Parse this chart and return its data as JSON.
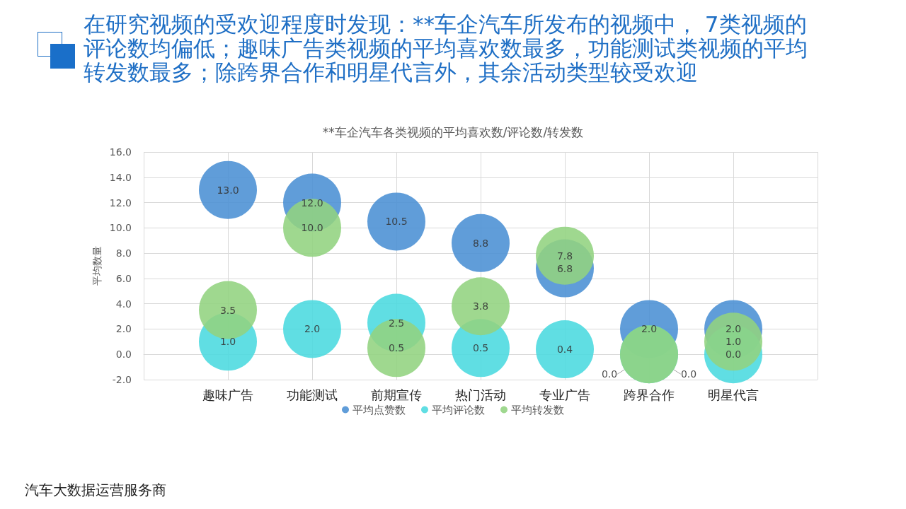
{
  "chart_data": {
    "type": "scatter",
    "title": "在研究视频的受欢迎程度时发现：**车企汽车所发布的视频中， 7类视频的评论数均偏低；趣味广告类视频的平均喜欢数最多，功能测试类视频的平均转发数最多；除跨界合作和明星代言外，其余活动类型较受欢迎",
    "subtitle": "**车企汽车各类视频的平均喜欢数/评论数/转发数",
    "ylabel": "平均数量",
    "categories": [
      null,
      "趣味广告",
      "功能测试",
      "前期宣传",
      "热门活动",
      "专业广告",
      "跨界合作",
      "明星代言",
      null
    ],
    "series": [
      {
        "name": "平均点赞数",
        "color": "#4a8fd4",
        "values": [
          null,
          13,
          12,
          10.5,
          8.8,
          6.8,
          2,
          2,
          null
        ],
        "value_labels": [
          null,
          "13.0",
          "12.0",
          "10.5",
          "8.8",
          "6.8",
          "2.0",
          "2.0",
          null
        ]
      },
      {
        "name": "平均评论数",
        "color": "#4ad9df",
        "values": [
          null,
          1,
          2,
          2.5,
          0.5,
          0.4,
          0,
          0,
          null
        ],
        "value_labels": [
          null,
          "1.0",
          "2.0",
          "2.5",
          "0.5",
          "0.4",
          "0.0",
          "0.0",
          null
        ]
      },
      {
        "name": "平均转发数",
        "color": "#92d37f",
        "values": [
          null,
          3.5,
          10,
          0.5,
          3.8,
          7.8,
          0,
          1,
          null
        ],
        "value_labels": [
          null,
          "3.5",
          "10.0",
          "0.5",
          "3.8",
          "7.8",
          "0.0",
          "1.0",
          null
        ]
      }
    ],
    "ylim": [
      -2,
      16
    ],
    "yticks": [
      {
        "value": -2,
        "label": "-2.0"
      },
      {
        "value": 0,
        "label": "0.0"
      },
      {
        "value": 2,
        "label": "2.0"
      },
      {
        "value": 4,
        "label": "4.0"
      },
      {
        "value": 6,
        "label": "6.0"
      },
      {
        "value": 8,
        "label": "8.0"
      },
      {
        "value": 10,
        "label": "10.0"
      },
      {
        "value": 12,
        "label": "12.0"
      },
      {
        "value": 14,
        "label": "14.0"
      },
      {
        "value": 16,
        "label": "16.0"
      }
    ],
    "grid": true,
    "legend": "bottom",
    "marker": "circle",
    "annotations": [
      "汽车大数据运营服务商"
    ]
  }
}
